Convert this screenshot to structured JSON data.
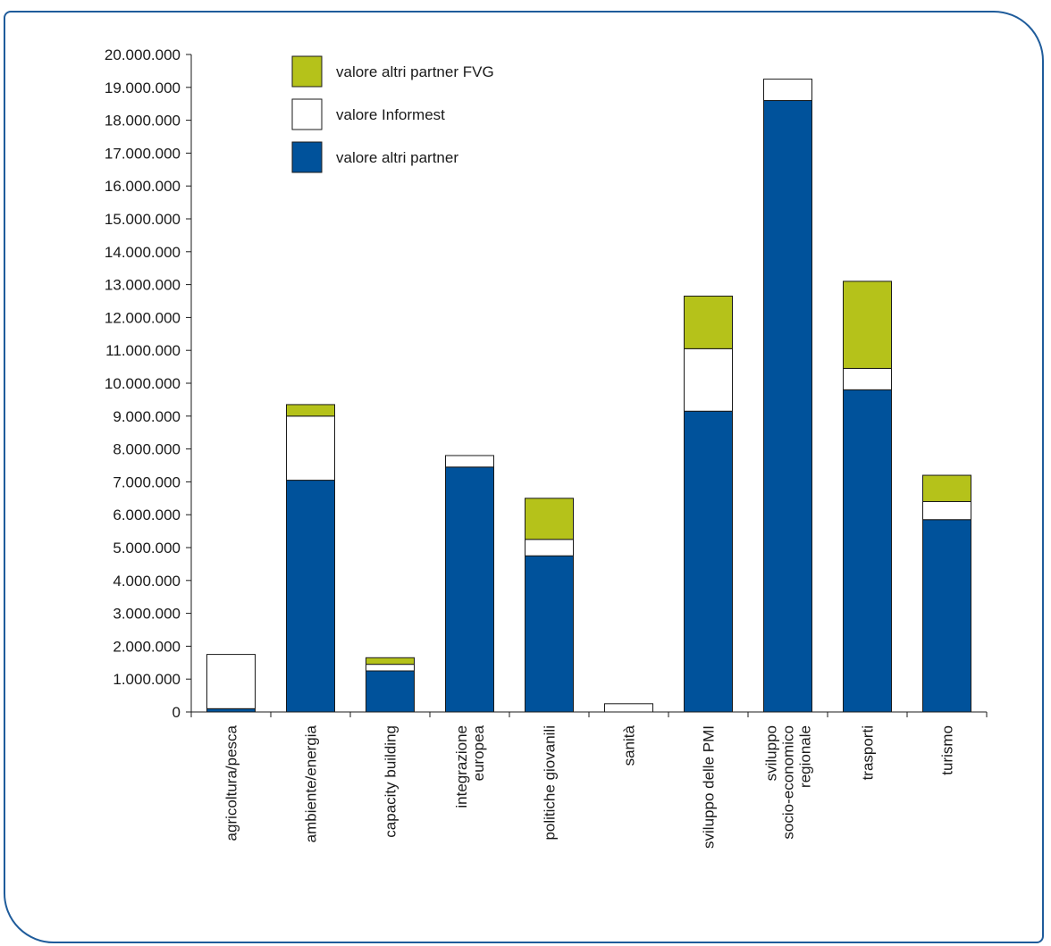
{
  "chart_data": {
    "type": "bar",
    "stacked": true,
    "title": "",
    "xlabel": "",
    "ylabel": "",
    "ylim": [
      0,
      20000000
    ],
    "y_ticks": [
      "0",
      "1.000.000",
      "2.000.000",
      "3.000.000",
      "4.000.000",
      "5.000.000",
      "6.000.000",
      "7.000.000",
      "8.000.000",
      "9.000.000",
      "10.000.000",
      "11.000.000",
      "12.000.000",
      "13.000.000",
      "14.000.000",
      "15.000.000",
      "16.000.000",
      "17.000.000",
      "18.000.000",
      "19.000.000",
      "20.000.000"
    ],
    "categories": [
      [
        "agricoltura/pesca"
      ],
      [
        "ambiente/energia"
      ],
      [
        "capacity building"
      ],
      [
        "integrazione",
        "europea"
      ],
      [
        "politiche giovanili"
      ],
      [
        "sanità"
      ],
      [
        "sviluppo delle PMI"
      ],
      [
        "sviluppo",
        "socio-economico",
        "regionale"
      ],
      [
        "trasporti"
      ],
      [
        "turismo"
      ]
    ],
    "series": [
      {
        "name": "valore altri partner",
        "color": "#00529b",
        "values": [
          100000,
          7050000,
          1250000,
          7450000,
          4750000,
          0,
          9150000,
          18600000,
          9800000,
          5850000
        ]
      },
      {
        "name": "valore Informest",
        "color": "#ffffff",
        "values": [
          1650000,
          1950000,
          200000,
          350000,
          500000,
          250000,
          1900000,
          650000,
          650000,
          550000
        ]
      },
      {
        "name": "valore altri partner FVG",
        "color": "#b5c21a",
        "values": [
          0,
          350000,
          200000,
          0,
          1250000,
          0,
          1600000,
          0,
          2650000,
          800000
        ]
      }
    ],
    "legend_order": [
      "valore altri partner FVG",
      "valore Informest",
      "valore altri partner"
    ],
    "legend": "top-left",
    "grid": false,
    "frame_color": "#1f5c9b"
  }
}
